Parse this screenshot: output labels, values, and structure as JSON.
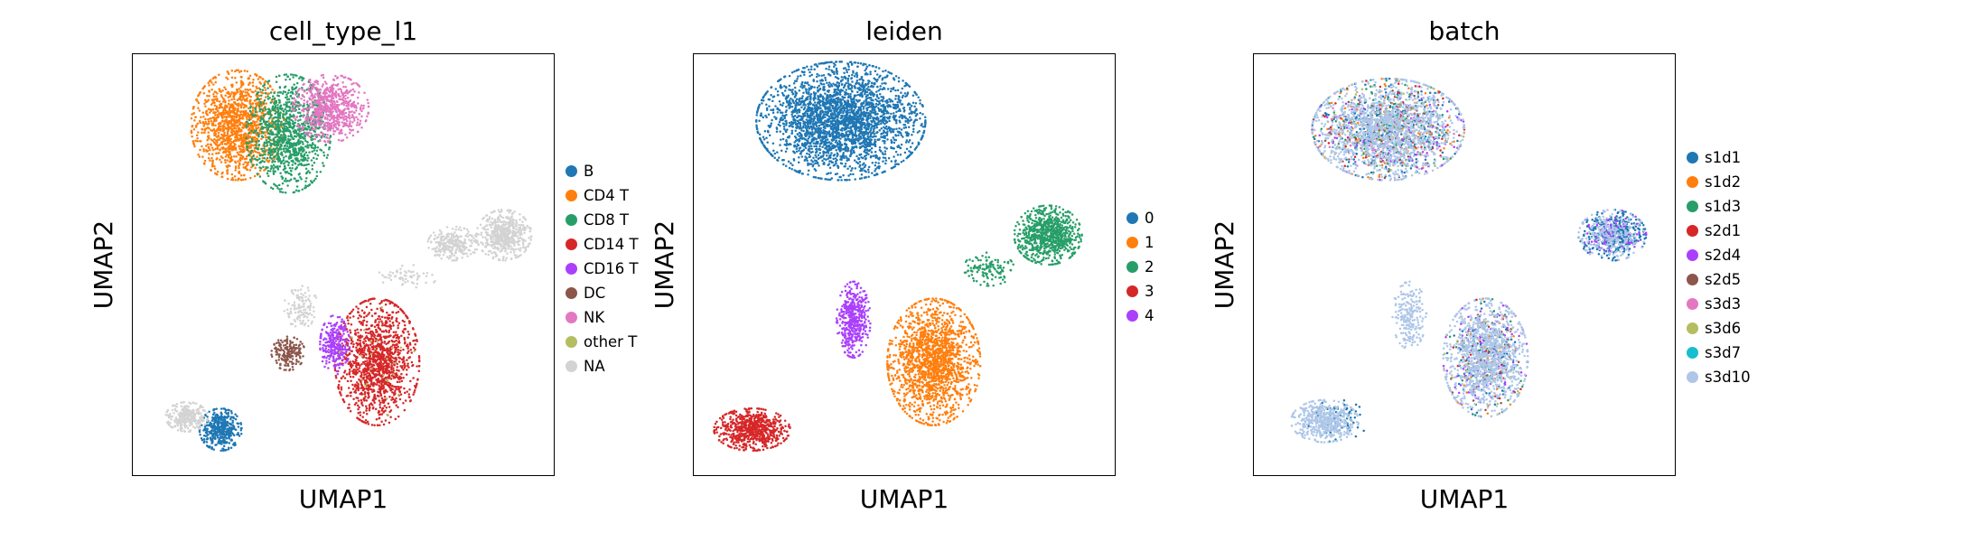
{
  "chart_data": [
    {
      "type": "scatter",
      "title": "cell_type_l1",
      "xlabel": "UMAP1",
      "ylabel": "UMAP2",
      "xlim": [
        0,
        100
      ],
      "ylim": [
        0,
        100
      ],
      "grid": false,
      "legend_position": "right",
      "series": [
        {
          "name": "B",
          "color": "#1f77b4",
          "clusters": [
            {
              "cx": 21,
              "cy": 11,
              "rx": 5,
              "ry": 5,
              "n": 420
            }
          ]
        },
        {
          "name": "CD4 T",
          "color": "#ff7f0e",
          "clusters": [
            {
              "cx": 25,
              "cy": 83,
              "rx": 11,
              "ry": 13,
              "n": 1300
            }
          ]
        },
        {
          "name": "CD8 T",
          "color": "#279e68",
          "clusters": [
            {
              "cx": 37,
              "cy": 81,
              "rx": 10,
              "ry": 14,
              "n": 1100
            }
          ]
        },
        {
          "name": "CD14 T",
          "color": "#d62728",
          "clusters": [
            {
              "cx": 58,
              "cy": 27,
              "rx": 10,
              "ry": 15,
              "n": 1300
            }
          ]
        },
        {
          "name": "CD16 T",
          "color": "#aa40fc",
          "clusters": [
            {
              "cx": 48,
              "cy": 31,
              "rx": 3.5,
              "ry": 7,
              "n": 280
            }
          ]
        },
        {
          "name": "DC",
          "color": "#8c564b",
          "clusters": [
            {
              "cx": 37,
              "cy": 29,
              "rx": 4,
              "ry": 4,
              "n": 180
            }
          ]
        },
        {
          "name": "NK",
          "color": "#e377c2",
          "clusters": [
            {
              "cx": 47,
              "cy": 87,
              "rx": 9,
              "ry": 8,
              "n": 700
            }
          ]
        },
        {
          "name": "other T",
          "color": "#b5bd61",
          "clusters": [
            {
              "cx": 58,
              "cy": 27,
              "rx": 9,
              "ry": 13,
              "n": 25
            }
          ]
        },
        {
          "name": "NA",
          "color": "#d3d3d3",
          "clusters": [
            {
              "cx": 88,
              "cy": 57,
              "rx": 6.5,
              "ry": 6,
              "n": 520
            },
            {
              "cx": 76,
              "cy": 55,
              "rx": 6,
              "ry": 4,
              "n": 260
            },
            {
              "cx": 65,
              "cy": 47,
              "rx": 7,
              "ry": 3,
              "n": 60
            },
            {
              "cx": 13,
              "cy": 14,
              "rx": 5,
              "ry": 3.5,
              "n": 260
            },
            {
              "cx": 40,
              "cy": 40,
              "rx": 4,
              "ry": 5,
              "n": 120
            }
          ]
        }
      ]
    },
    {
      "type": "scatter",
      "title": "leiden",
      "xlabel": "UMAP1",
      "ylabel": "UMAP2",
      "xlim": [
        0,
        100
      ],
      "ylim": [
        0,
        100
      ],
      "grid": false,
      "legend_position": "right",
      "series": [
        {
          "name": "0",
          "color": "#1f77b4",
          "clusters": [
            {
              "cx": 35,
              "cy": 84,
              "rx": 20,
              "ry": 14,
              "n": 2800
            }
          ]
        },
        {
          "name": "1",
          "color": "#ff7f0e",
          "clusters": [
            {
              "cx": 57,
              "cy": 27,
              "rx": 11,
              "ry": 15,
              "n": 1700
            }
          ]
        },
        {
          "name": "2",
          "color": "#279e68",
          "clusters": [
            {
              "cx": 84,
              "cy": 57,
              "rx": 8,
              "ry": 7,
              "n": 800
            },
            {
              "cx": 70,
              "cy": 49,
              "rx": 6,
              "ry": 4,
              "n": 120
            }
          ]
        },
        {
          "name": "3",
          "color": "#d62728",
          "clusters": [
            {
              "cx": 14,
              "cy": 11,
              "rx": 9,
              "ry": 5,
              "n": 700
            }
          ]
        },
        {
          "name": "4",
          "color": "#aa40fc",
          "clusters": [
            {
              "cx": 38,
              "cy": 37,
              "rx": 4,
              "ry": 9,
              "n": 450
            }
          ]
        }
      ]
    },
    {
      "type": "scatter",
      "title": "batch",
      "xlabel": "UMAP1",
      "ylabel": "UMAP2",
      "xlim": [
        0,
        100
      ],
      "ylim": [
        0,
        100
      ],
      "grid": false,
      "legend_position": "right",
      "series": [
        {
          "name": "s1d1",
          "color": "#1f77b4",
          "clusters": [
            {
              "cx": 85,
              "cy": 57,
              "rx": 8,
              "ry": 6,
              "n": 380
            },
            {
              "cx": 32,
              "cy": 82,
              "rx": 18,
              "ry": 12,
              "n": 350
            },
            {
              "cx": 55,
              "cy": 28,
              "rx": 10,
              "ry": 14,
              "n": 150
            },
            {
              "cx": 20,
              "cy": 13,
              "rx": 7,
              "ry": 5,
              "n": 80
            }
          ]
        },
        {
          "name": "s1d2",
          "color": "#ff7f0e",
          "clusters": [
            {
              "cx": 32,
              "cy": 82,
              "rx": 18,
              "ry": 12,
              "n": 200
            },
            {
              "cx": 55,
              "cy": 28,
              "rx": 10,
              "ry": 14,
              "n": 60
            }
          ]
        },
        {
          "name": "s1d3",
          "color": "#279e68",
          "clusters": [
            {
              "cx": 32,
              "cy": 82,
              "rx": 18,
              "ry": 12,
              "n": 160
            },
            {
              "cx": 55,
              "cy": 28,
              "rx": 10,
              "ry": 14,
              "n": 60
            }
          ]
        },
        {
          "name": "s2d1",
          "color": "#d62728",
          "clusters": [
            {
              "cx": 32,
              "cy": 82,
              "rx": 18,
              "ry": 12,
              "n": 80
            },
            {
              "cx": 55,
              "cy": 28,
              "rx": 10,
              "ry": 14,
              "n": 40
            }
          ]
        },
        {
          "name": "s2d4",
          "color": "#aa40fc",
          "clusters": [
            {
              "cx": 32,
              "cy": 82,
              "rx": 18,
              "ry": 12,
              "n": 140
            },
            {
              "cx": 55,
              "cy": 28,
              "rx": 10,
              "ry": 14,
              "n": 120
            },
            {
              "cx": 85,
              "cy": 57,
              "rx": 8,
              "ry": 6,
              "n": 80
            }
          ]
        },
        {
          "name": "s2d5",
          "color": "#8c564b",
          "clusters": [
            {
              "cx": 32,
              "cy": 82,
              "rx": 18,
              "ry": 12,
              "n": 80
            },
            {
              "cx": 55,
              "cy": 28,
              "rx": 10,
              "ry": 14,
              "n": 40
            }
          ]
        },
        {
          "name": "s3d3",
          "color": "#e377c2",
          "clusters": [
            {
              "cx": 32,
              "cy": 82,
              "rx": 18,
              "ry": 12,
              "n": 40
            }
          ]
        },
        {
          "name": "s3d6",
          "color": "#b5bd61",
          "clusters": [
            {
              "cx": 32,
              "cy": 82,
              "rx": 18,
              "ry": 12,
              "n": 40
            },
            {
              "cx": 55,
              "cy": 28,
              "rx": 10,
              "ry": 14,
              "n": 30
            }
          ]
        },
        {
          "name": "s3d7",
          "color": "#17becf",
          "clusters": [
            {
              "cx": 32,
              "cy": 82,
              "rx": 18,
              "ry": 12,
              "n": 30
            }
          ]
        },
        {
          "name": "s3d10",
          "color": "#aec7e8",
          "clusters": [
            {
              "cx": 32,
              "cy": 82,
              "rx": 18,
              "ry": 12,
              "n": 1500
            },
            {
              "cx": 55,
              "cy": 28,
              "rx": 10,
              "ry": 14,
              "n": 1100
            },
            {
              "cx": 85,
              "cy": 57,
              "rx": 8,
              "ry": 6,
              "n": 260
            },
            {
              "cx": 17,
              "cy": 13,
              "rx": 8,
              "ry": 5,
              "n": 500
            },
            {
              "cx": 37,
              "cy": 38,
              "rx": 4,
              "ry": 8,
              "n": 220
            }
          ]
        }
      ]
    }
  ]
}
